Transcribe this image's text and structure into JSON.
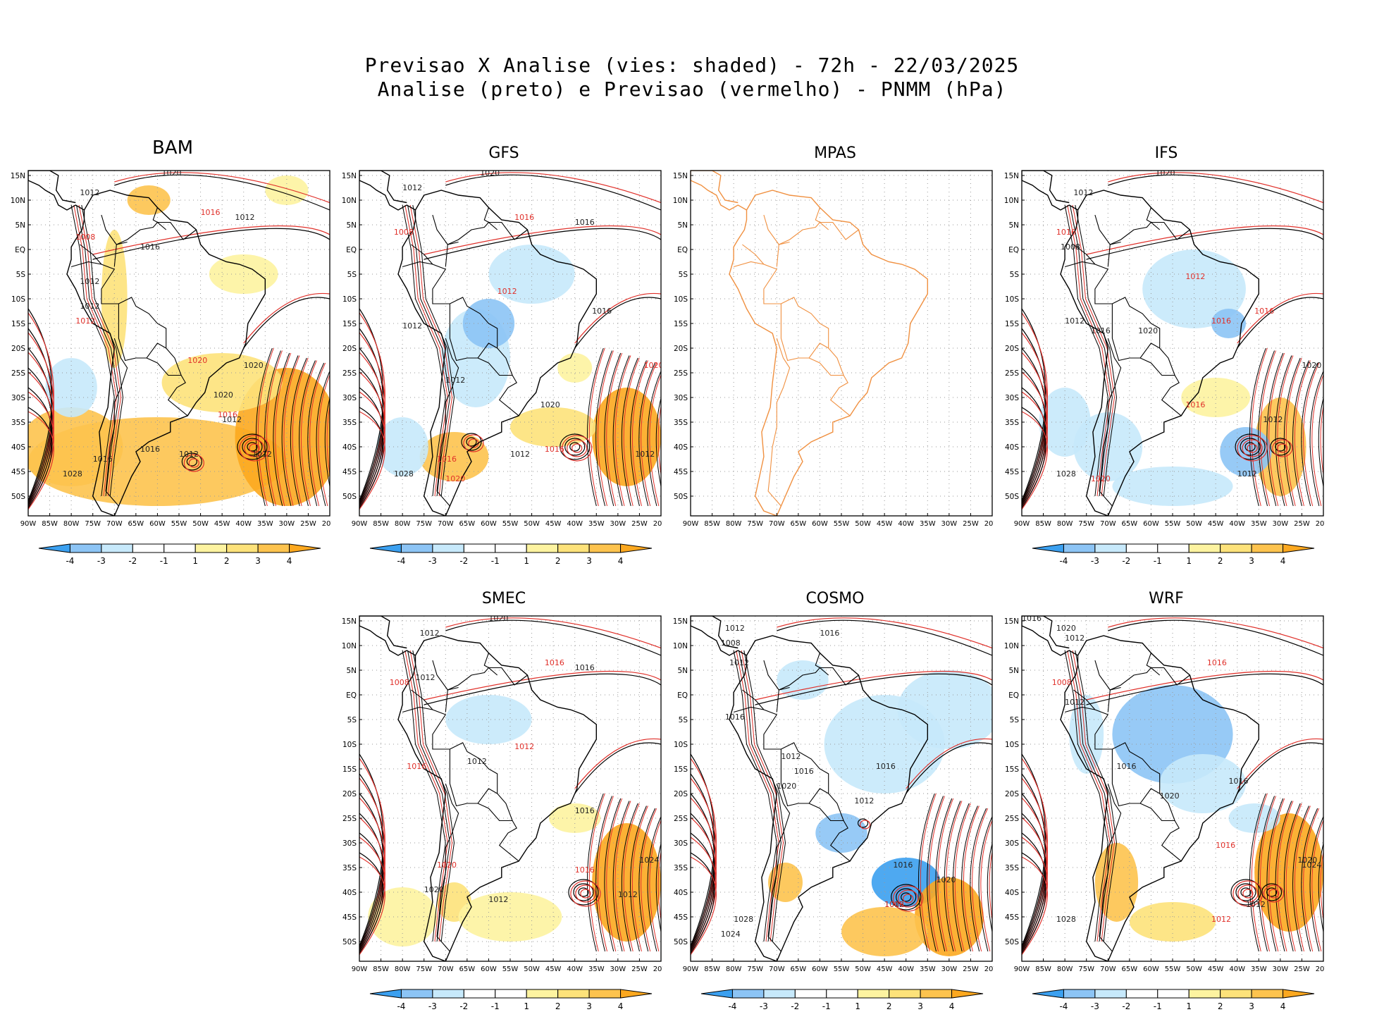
{
  "header": {
    "line1": "Previsao X Analise (vies: shaded) - 72h - 22/03/2025",
    "line2": "Analise (preto) e Previsao (vermelho) - PNMM (hPa)"
  },
  "colors": {
    "analysis": "#000000",
    "forecast": "#e0302a",
    "blue4": "#3ba0f0",
    "blue3": "#8cc4f5",
    "blue2": "#c7e9fb",
    "yellow1": "#fdf3a0",
    "yellow2": "#fde27a",
    "orange3": "#fdc34e",
    "orange4": "#fca81f",
    "coast_mpas": "#f09040"
  },
  "lat_labels": [
    "15N",
    "10N",
    "5N",
    "EQ",
    "5S",
    "10S",
    "15S",
    "20S",
    "25S",
    "30S",
    "35S",
    "40S",
    "45S",
    "50S"
  ],
  "lon_labels": [
    "90W",
    "85W",
    "80W",
    "75W",
    "70W",
    "65W",
    "60W",
    "55W",
    "50W",
    "45W",
    "40W",
    "35W",
    "30W",
    "25W",
    "20W"
  ],
  "colorbar_labels": [
    "-4",
    "-3",
    "-2",
    "-1",
    "1",
    "2",
    "3",
    "4"
  ],
  "panels": [
    {
      "name": "BAM",
      "contours": [
        "1020",
        "1012",
        "1016",
        "1012",
        "1008",
        "1016",
        "1012",
        "1012",
        "1012",
        "1020",
        "1020",
        "1020",
        "1016",
        "1012",
        "1016",
        "1028",
        "1012",
        "1012",
        "1016"
      ]
    },
    {
      "name": "GFS",
      "contours": [
        "1020",
        "1012",
        "1016",
        "1008",
        "1016",
        "1012",
        "1012",
        "1016",
        "1020",
        "1012",
        "1020",
        "1012",
        "1016",
        "1012",
        "1028",
        "1020",
        "1016"
      ]
    },
    {
      "name": "MPAS",
      "contours": []
    },
    {
      "name": "IFS",
      "contours": [
        "1020",
        "1012",
        "1016",
        "1008",
        "1012",
        "1016",
        "1012",
        "1016",
        "1020",
        "1016",
        "1020",
        "1016",
        "1012",
        "1028",
        "1020",
        "1012"
      ]
    },
    {
      "name": "SMEC",
      "contours": [
        "1020",
        "1012",
        "1016",
        "1008",
        "1012",
        "1016",
        "1012",
        "1016",
        "1012",
        "1016",
        "1020",
        "1024",
        "1012",
        "1020",
        "1012",
        "1016"
      ]
    },
    {
      "name": "COSMO",
      "contours": [
        "1012",
        "1016",
        "1008",
        "1012",
        "1016",
        "1012",
        "1016",
        "1020",
        "1016",
        "1012",
        "1016",
        "1020",
        "1012",
        "1028",
        "1024",
        "1008"
      ]
    },
    {
      "name": "WRF",
      "contours": [
        "1016",
        "1020",
        "1012",
        "1016",
        "1008",
        "1012",
        "1016",
        "1016",
        "1020",
        "1016",
        "1020",
        "1024",
        "1012",
        "1028",
        "1012"
      ]
    }
  ]
}
